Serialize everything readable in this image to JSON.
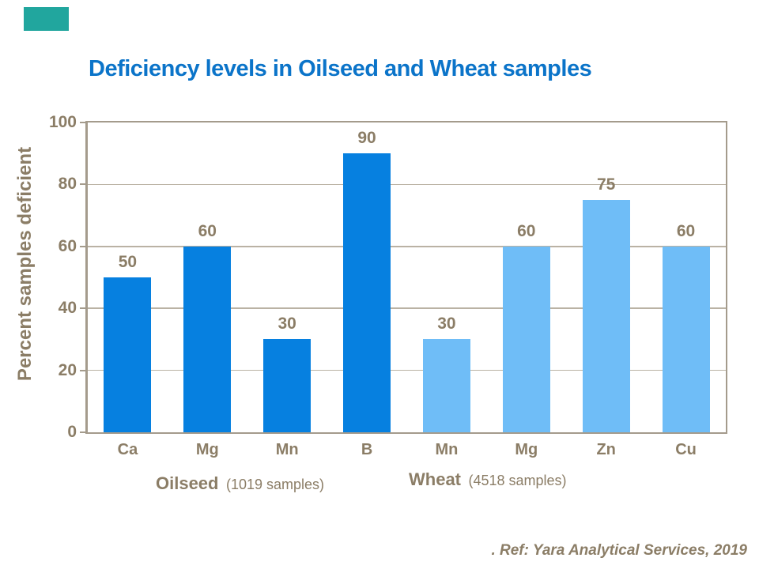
{
  "brand": {
    "corner_color": "#21A69E"
  },
  "footer": {
    "ref": ". Ref: Yara Analytical Services, 2019"
  },
  "chart_data": {
    "type": "bar",
    "title": "Deficiency levels in Oilseed and Wheat samples",
    "title_color": "#0B74C9",
    "xlabel": "",
    "ylabel": "Percent samples deficient",
    "ylim": [
      0,
      100
    ],
    "yticks": [
      0,
      20,
      40,
      60,
      80,
      100
    ],
    "grid": true,
    "legend_position": "none",
    "label_color": "#8B7D66",
    "groups": [
      {
        "name": "Oilseed",
        "note": "(1019 samples)",
        "color": "#0680E0",
        "categories": [
          "Ca",
          "Mg",
          "Mn",
          "B"
        ],
        "values": [
          50,
          60,
          30,
          90
        ]
      },
      {
        "name": "Wheat",
        "note": "(4518 samples)",
        "color": "#6FBDF7",
        "categories": [
          "Mn",
          "Mg",
          "Zn",
          "Cu"
        ],
        "values": [
          30,
          60,
          75,
          60
        ]
      }
    ]
  }
}
